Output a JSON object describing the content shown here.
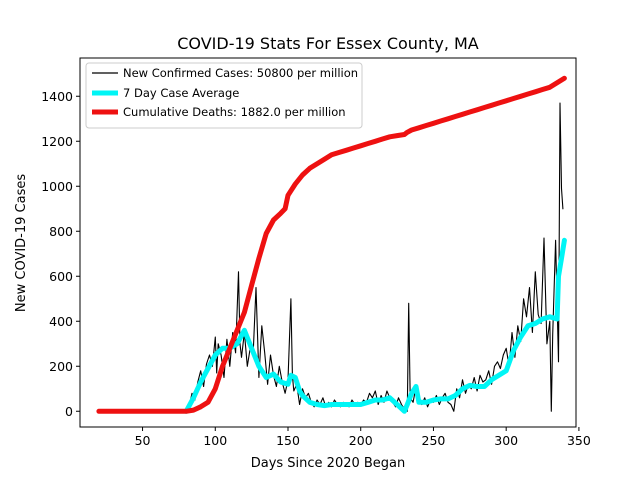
{
  "chart_data": {
    "type": "line",
    "title": "COVID-19 Stats For Essex County, MA",
    "xlabel": "Days Since 2020 Began",
    "ylabel": "New COVID-19 Cases",
    "xlim": [
      7,
      348
    ],
    "ylim": [
      -70,
      1570
    ],
    "xticks": [
      50,
      100,
      150,
      200,
      250,
      300,
      350
    ],
    "yticks": [
      0,
      200,
      400,
      600,
      800,
      1000,
      1200,
      1400
    ],
    "grid": false,
    "legend_position": "top-left",
    "series": [
      {
        "name": "New Confirmed Cases: 50800 per million",
        "color": "#000000",
        "style": "thin",
        "x": [
          20,
          40,
          60,
          80,
          82,
          84,
          86,
          88,
          90,
          92,
          94,
          96,
          98,
          100,
          101,
          102,
          104,
          106,
          108,
          110,
          112,
          114,
          116,
          117,
          118,
          120,
          122,
          124,
          126,
          128,
          130,
          132,
          134,
          136,
          138,
          140,
          142,
          144,
          146,
          148,
          150,
          152,
          153,
          154,
          156,
          158,
          160,
          162,
          164,
          166,
          168,
          170,
          172,
          174,
          176,
          178,
          180,
          182,
          184,
          186,
          188,
          190,
          192,
          194,
          196,
          198,
          200,
          202,
          204,
          206,
          208,
          210,
          212,
          214,
          216,
          218,
          220,
          222,
          224,
          226,
          228,
          230,
          232,
          233,
          234,
          236,
          238,
          240,
          242,
          244,
          246,
          248,
          250,
          252,
          254,
          256,
          258,
          260,
          262,
          264,
          266,
          268,
          270,
          272,
          274,
          276,
          278,
          280,
          282,
          284,
          286,
          288,
          290,
          292,
          294,
          296,
          298,
          300,
          302,
          304,
          306,
          308,
          310,
          312,
          314,
          316,
          318,
          320,
          322,
          324,
          326,
          328,
          330,
          331,
          332,
          334,
          336,
          337,
          338,
          339
        ],
        "values": [
          0,
          0,
          0,
          0,
          20,
          80,
          50,
          130,
          180,
          110,
          210,
          250,
          200,
          330,
          170,
          300,
          250,
          150,
          320,
          200,
          350,
          260,
          620,
          300,
          240,
          350,
          200,
          280,
          250,
          550,
          150,
          380,
          260,
          120,
          250,
          160,
          110,
          200,
          130,
          80,
          140,
          500,
          160,
          90,
          120,
          30,
          100,
          60,
          80,
          40,
          20,
          50,
          30,
          60,
          20,
          40,
          20,
          50,
          30,
          20,
          40,
          30,
          20,
          50,
          30,
          40,
          30,
          50,
          40,
          80,
          60,
          90,
          30,
          70,
          40,
          90,
          60,
          40,
          20,
          60,
          30,
          10,
          0,
          480,
          60,
          40,
          110,
          50,
          30,
          60,
          20,
          50,
          40,
          70,
          30,
          60,
          80,
          40,
          30,
          0,
          100,
          60,
          140,
          80,
          120,
          100,
          150,
          90,
          160,
          130,
          140,
          180,
          120,
          200,
          220,
          190,
          250,
          280,
          200,
          350,
          240,
          380,
          310,
          500,
          420,
          550,
          350,
          620,
          430,
          390,
          770,
          300,
          400,
          0,
          340,
          760,
          220,
          1370,
          990,
          900
        ]
      },
      {
        "name": "7 Day Case Average",
        "color": "#00f5f5",
        "style": "thick",
        "x": [
          80,
          85,
          90,
          95,
          100,
          105,
          110,
          115,
          120,
          125,
          130,
          135,
          140,
          145,
          150,
          152,
          155,
          158,
          160,
          165,
          170,
          175,
          180,
          185,
          190,
          195,
          200,
          205,
          210,
          215,
          220,
          225,
          230,
          232,
          235,
          238,
          240,
          245,
          250,
          255,
          260,
          265,
          270,
          275,
          280,
          285,
          290,
          295,
          300,
          305,
          310,
          315,
          320,
          325,
          330,
          335,
          336,
          338,
          340
        ],
        "values": [
          0,
          60,
          130,
          190,
          250,
          280,
          280,
          300,
          360,
          280,
          200,
          150,
          165,
          130,
          120,
          160,
          150,
          90,
          70,
          40,
          30,
          25,
          30,
          30,
          30,
          30,
          30,
          40,
          50,
          50,
          60,
          30,
          0,
          30,
          80,
          110,
          40,
          40,
          50,
          55,
          55,
          70,
          100,
          115,
          110,
          110,
          140,
          160,
          180,
          270,
          330,
          380,
          390,
          410,
          420,
          410,
          600,
          680,
          760
        ]
      },
      {
        "name": "Cumulative Deaths: 1882.0 per million",
        "color": "#ee1111",
        "style": "thick",
        "x": [
          20,
          40,
          60,
          80,
          85,
          90,
          95,
          100,
          105,
          110,
          115,
          120,
          125,
          130,
          135,
          140,
          145,
          148,
          150,
          152,
          155,
          160,
          165,
          170,
          175,
          180,
          185,
          190,
          195,
          200,
          205,
          210,
          215,
          220,
          225,
          230,
          232,
          235,
          240,
          245,
          250,
          255,
          260,
          265,
          270,
          275,
          280,
          285,
          290,
          295,
          300,
          305,
          310,
          315,
          320,
          325,
          330,
          335,
          340
        ],
        "values": [
          0,
          0,
          0,
          0,
          5,
          20,
          40,
          100,
          200,
          280,
          360,
          440,
          560,
          680,
          790,
          850,
          880,
          900,
          960,
          980,
          1010,
          1050,
          1080,
          1100,
          1120,
          1140,
          1150,
          1160,
          1170,
          1180,
          1190,
          1200,
          1210,
          1220,
          1225,
          1230,
          1240,
          1250,
          1260,
          1270,
          1280,
          1290,
          1300,
          1310,
          1320,
          1330,
          1340,
          1350,
          1360,
          1370,
          1380,
          1390,
          1400,
          1410,
          1420,
          1430,
          1440,
          1460,
          1480
        ]
      }
    ]
  }
}
